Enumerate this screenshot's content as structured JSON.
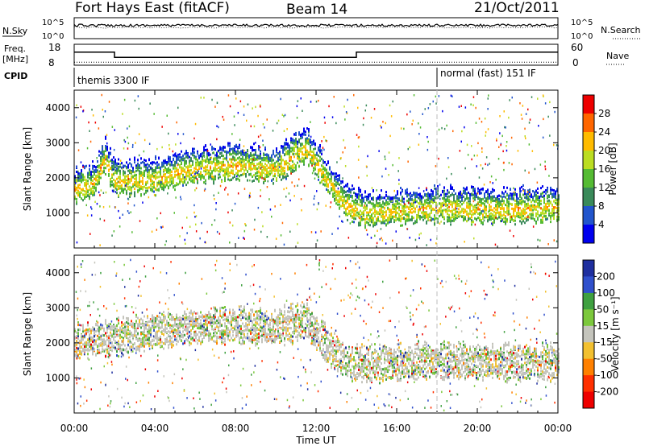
{
  "header": {
    "title": "Fort Hays East (fitACF)",
    "beam": "Beam 14",
    "date": "21/Oct/2011"
  },
  "strips": {
    "nsky_label": "N.Sky",
    "nsearch_label": "N.Search",
    "noise_left_ticks": [
      "10^5",
      "10^0"
    ],
    "noise_right_ticks": [
      "10^5",
      "10^0"
    ],
    "freq_label": "Freq.",
    "freq_unit": "[MHz]",
    "freq_left_ticks": [
      "18",
      "8"
    ],
    "nave_label": "Nave",
    "nave_right_ticks": [
      "60",
      "0"
    ],
    "cpid_label": "CPID",
    "cpid_segments": [
      {
        "start_hour": 0,
        "text": "themis 3300 IF"
      },
      {
        "start_hour": 18,
        "text": "normal (fast) 151 IF"
      }
    ],
    "freq_trace": [
      [
        0,
        14.5
      ],
      [
        2,
        14.5
      ],
      [
        2,
        11.5
      ],
      [
        14,
        11.5
      ],
      [
        14,
        14.5
      ],
      [
        24,
        14.5
      ]
    ],
    "nave_trace": [
      [
        0,
        5
      ],
      [
        24,
        5
      ]
    ]
  },
  "chart_data": [
    {
      "type": "heatmap",
      "name": "Power",
      "ylabel": "Slant Range [km]",
      "yticks": [
        "1000",
        "2000",
        "3000",
        "4000"
      ],
      "ylim": [
        0,
        4500
      ],
      "xlim": [
        0,
        24
      ],
      "colorbar_label": "Power [dB]",
      "colorbar_ticks": [
        "4",
        "8",
        "12",
        "16",
        "20",
        "24",
        "28"
      ],
      "colorbar_range": [
        0,
        32
      ],
      "colors": [
        "#0000ee",
        "#2255cc",
        "#3a8a5a",
        "#55bb33",
        "#bbdd22",
        "#ffbb00",
        "#ff6600",
        "#ee0000"
      ],
      "echo_band_km": [
        [
          0,
          1700
        ],
        [
          1,
          1900
        ],
        [
          1.5,
          2600
        ],
        [
          2,
          1950
        ],
        [
          4,
          2000
        ],
        [
          6,
          2300
        ],
        [
          8,
          2400
        ],
        [
          10,
          2300
        ],
        [
          11.5,
          2900
        ],
        [
          12.5,
          2000
        ],
        [
          13.5,
          1250
        ],
        [
          14.5,
          1050
        ],
        [
          16,
          1100
        ],
        [
          18,
          1200
        ],
        [
          20,
          1150
        ],
        [
          22,
          1150
        ],
        [
          24,
          1200
        ]
      ]
    },
    {
      "type": "heatmap",
      "name": "Velocity",
      "ylabel": "Slant Range [km]",
      "yticks": [
        "1000",
        "2000",
        "3000",
        "4000"
      ],
      "ylim": [
        0,
        4500
      ],
      "xlim": [
        0,
        24
      ],
      "colorbar_label": "Velocity [m s⁻¹]",
      "colorbar_ticks": [
        "200",
        "100",
        "50",
        "15",
        "-15",
        "-50",
        "-100",
        "-200"
      ],
      "colors": [
        "#1f2f9f",
        "#3050cc",
        "#3fa040",
        "#7cc83c",
        "#c4c4bc",
        "#f2c030",
        "#ff8000",
        "#ff3000",
        "#ee0000"
      ],
      "echo_band_km": [
        [
          0,
          2000
        ],
        [
          2,
          2100
        ],
        [
          4,
          2300
        ],
        [
          6,
          2400
        ],
        [
          8,
          2450
        ],
        [
          10,
          2400
        ],
        [
          11.5,
          2600
        ],
        [
          12.5,
          1900
        ],
        [
          13.5,
          1400
        ],
        [
          15,
          1350
        ],
        [
          18,
          1450
        ],
        [
          21,
          1400
        ],
        [
          24,
          1400
        ]
      ]
    }
  ],
  "x_axis": {
    "label": "Time UT",
    "ticks": [
      "00:00",
      "04:00",
      "08:00",
      "12:00",
      "16:00",
      "20:00",
      "00:00"
    ]
  }
}
